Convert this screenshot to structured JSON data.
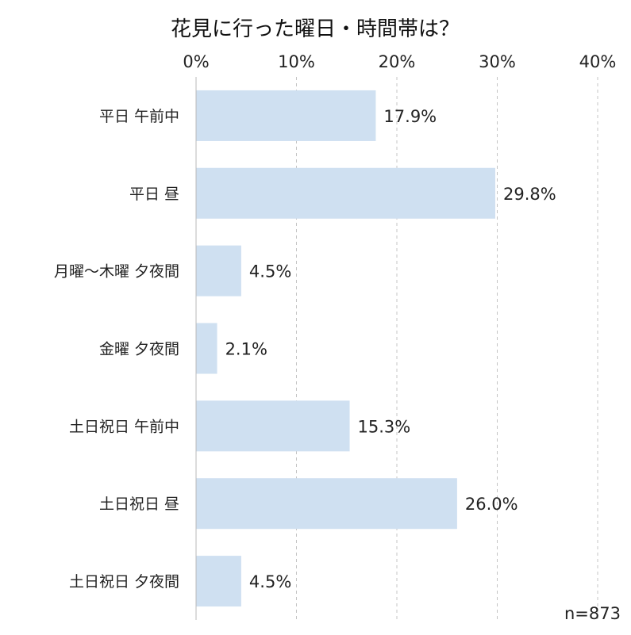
{
  "chart_data": {
    "type": "bar",
    "orientation": "horizontal",
    "title": "花見に行った曜日・時間帯は？",
    "categories": [
      "平日 午前中",
      "平日 昼",
      "月曜～木曜 夕夜間",
      "金曜 夕夜間",
      "土日祝日 午前中",
      "土日祝日 昼",
      "土日祝日 夕夜間"
    ],
    "values": [
      17.9,
      29.8,
      4.5,
      2.1,
      15.3,
      26.0,
      4.5
    ],
    "value_labels": [
      "17.9%",
      "29.8%",
      "4.5%",
      "2.1%",
      "15.3%",
      "26.0%",
      "4.5%"
    ],
    "x_ticks": [
      "0%",
      "10%",
      "20%",
      "30%",
      "40%"
    ],
    "xlim": [
      0,
      40
    ],
    "x_axis_position": "top",
    "grid": "vertical dashed",
    "bar_color": "#cfe0f1",
    "note": "n=873"
  }
}
